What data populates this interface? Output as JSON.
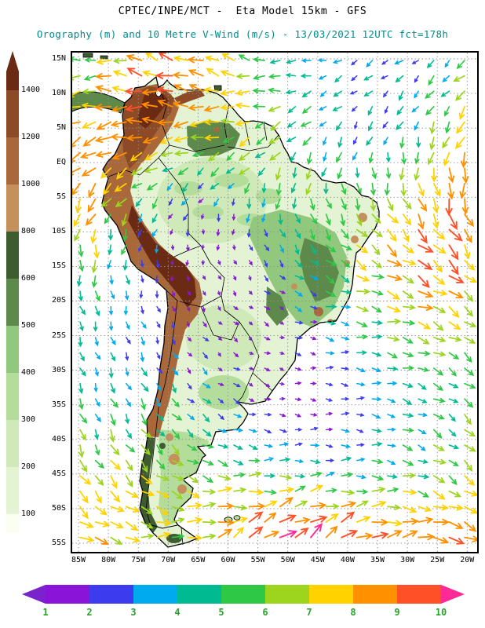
{
  "header": {
    "line1": "CPTEC/INPE/MCT -  Eta Model 15km - GFS",
    "line2": "Orography (m) and 10 Metre V-Wind (m/s) - 13/03/2021 12UTC fct=178h",
    "line1_color": "#000000",
    "line2_color": "#008b8b"
  },
  "map": {
    "region": "South America",
    "lat_labels": [
      "15N",
      "10N",
      "5N",
      "EQ",
      "5S",
      "10S",
      "15S",
      "20S",
      "25S",
      "30S",
      "35S",
      "40S",
      "45S",
      "50S",
      "55S"
    ],
    "lon_labels": [
      "85W",
      "80W",
      "75W",
      "70W",
      "65W",
      "60W",
      "55W",
      "50W",
      "45W",
      "40W",
      "35W",
      "30W",
      "25W",
      "20W"
    ],
    "grid_color": "#8f8f8f",
    "coast_color": "#000000",
    "border_color": "#000000",
    "ocean_color": "#ffffff"
  },
  "orography_scale": {
    "units": "m",
    "ticks": [
      100,
      200,
      300,
      400,
      500,
      600,
      800,
      1000,
      1200,
      1400
    ],
    "colors_bottom_to_top": [
      "#fbfff2",
      "#e4f3d3",
      "#cfeab8",
      "#b4dd9b",
      "#92c87e",
      "#5d8a4a",
      "#3f5c31",
      "#c4905c",
      "#a8683a",
      "#8c4a26",
      "#6b2a14"
    ],
    "label_color": "#000000"
  },
  "wind_scale": {
    "units": "m/s",
    "ticks": [
      1,
      2,
      3,
      4,
      5,
      6,
      7,
      8,
      9,
      10
    ],
    "segment_colors": [
      "#8a14d8",
      "#3c3cee",
      "#00aaee",
      "#00bb92",
      "#2ec846",
      "#9cd41e",
      "#ffd200",
      "#ff9000",
      "#ff5028"
    ],
    "under_color": "#7a22cc",
    "over_color": "#ff2a96",
    "label_color": "#2aa32a",
    "arrow_grid_spacing_deg": 2.5
  }
}
